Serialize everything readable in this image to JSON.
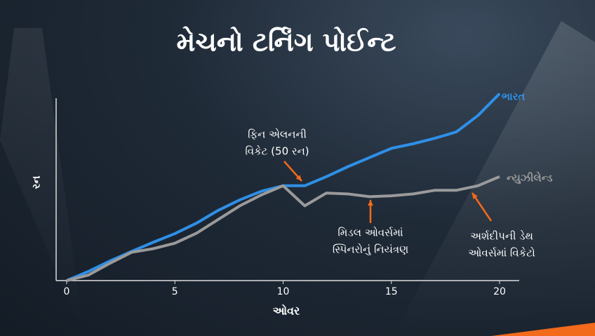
{
  "chart_data": {
    "type": "line",
    "title": "મેચનો ટર્નિંગ પોઈન્ટ",
    "x_label": "ઓવર",
    "y_label": "રન",
    "x": [
      0,
      1,
      2,
      3,
      4,
      5,
      6,
      7,
      8,
      9,
      10,
      11,
      12,
      13,
      14,
      15,
      16,
      17,
      18,
      19,
      20
    ],
    "series": [
      {
        "name": "ભારત",
        "color": "#2f8fe6",
        "values": [
          0,
          10,
          21.5,
          32,
          42,
          51.5,
          63,
          77,
          88.5,
          98,
          104,
          104,
          114,
          125,
          135,
          145,
          150,
          156,
          163,
          181,
          205
        ]
      },
      {
        "name": "ન્યુઝીલેન્ડ",
        "color": "#9a9a9a",
        "values": [
          0,
          6,
          19,
          31,
          35,
          41,
          52,
          67,
          82,
          94,
          104,
          82,
          96,
          95,
          92,
          93,
          95,
          99,
          99,
          104,
          114
        ]
      }
    ],
    "xlim": [
      0,
      20.9
    ],
    "xticks": [
      0,
      5,
      10,
      15,
      20
    ],
    "ylim": [
      0,
      220
    ],
    "annotations": [
      {
        "lines": [
          "ફિન એલનની",
          "વિકેટ (50 રન)"
        ],
        "color": "#f26a1b"
      },
      {
        "lines": [
          "મિડલ ઓવર્સમાં",
          "સ્પિનરોનું નિયંત્રણ"
        ],
        "color": "#f26a1b"
      },
      {
        "lines": [
          "અર્શદીપની ડેથ",
          "ઓવર્સમાં વિકેટો"
        ],
        "color": "#f26a1b"
      }
    ]
  }
}
